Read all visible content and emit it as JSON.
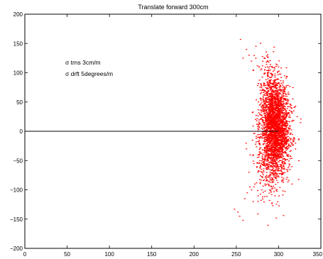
{
  "chart_data": {
    "type": "scatter",
    "title": "Translate forward 300cm",
    "xlabel": "",
    "ylabel": "",
    "xlim": [
      0,
      350
    ],
    "ylim": [
      -200,
      200
    ],
    "x_ticks": [
      0,
      50,
      100,
      150,
      200,
      250,
      300,
      350
    ],
    "y_ticks": [
      -200,
      -150,
      -100,
      -50,
      0,
      50,
      100,
      150,
      200
    ],
    "grid": false,
    "annotations": [
      "σ trns 3cm/m",
      "σ drft 5degrees/m"
    ],
    "line": {
      "x": [
        0,
        300
      ],
      "y": [
        0,
        0
      ]
    },
    "series": [
      {
        "color": "#ff0000",
        "x": [
          255,
          262,
          265,
          258,
          268,
          275,
          279,
          283,
          287,
          291,
          295,
          298,
          302,
          306,
          310,
          314,
          318,
          322,
          326,
          281,
          289,
          297,
          304,
          312,
          285,
          293,
          300,
          308,
          316,
          262,
          270,
          278,
          288,
          296,
          306,
          316,
          324,
          268,
          276,
          284,
          294,
          302,
          310,
          320,
          270,
          280,
          290,
          300,
          310,
          320,
          248,
          252,
          254,
          258,
          260,
          263,
          266,
          272,
          265,
          274
        ],
        "y": [
          157,
          140,
          130,
          125,
          120,
          112,
          105,
          98,
          110,
          92,
          85,
          80,
          72,
          65,
          55,
          45,
          35,
          25,
          15,
          70,
          60,
          50,
          40,
          30,
          20,
          10,
          0,
          -10,
          -20,
          -30,
          -40,
          -50,
          -60,
          -70,
          -80,
          -90,
          -50,
          -100,
          -110,
          -90,
          -75,
          -60,
          -40,
          -20,
          -120,
          -100,
          -80,
          -60,
          -40,
          -30,
          -133,
          -138,
          -145,
          -152,
          -115,
          -105,
          -95,
          -90,
          -70,
          -88
        ]
      }
    ]
  }
}
